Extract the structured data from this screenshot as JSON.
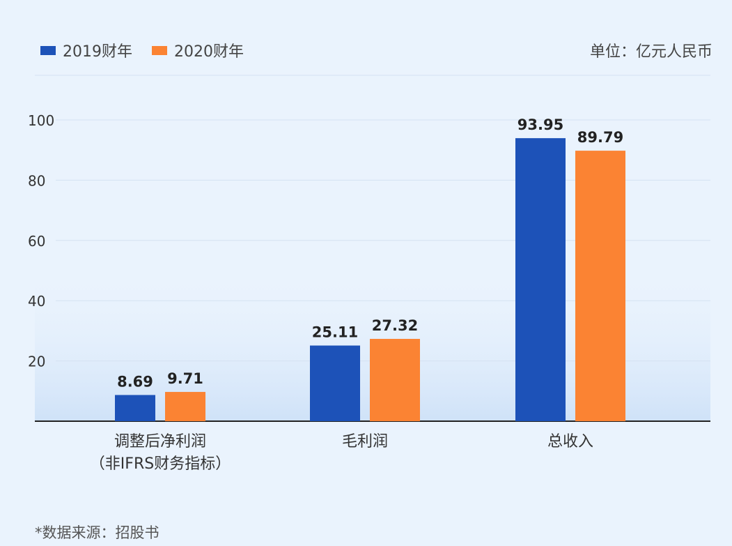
{
  "unit_label": "单位：亿元人民币",
  "source_note": "*数据来源：招股书",
  "colors": {
    "series_2019": "#1d52b8",
    "series_2020": "#fb8333",
    "axis": "#222222",
    "grid": "#d4e2f2",
    "background": "#eaf3fd"
  },
  "chart_data": {
    "type": "bar",
    "categories": [
      [
        "调整后净利润",
        "（非IFRS财务指标）"
      ],
      [
        "毛利润"
      ],
      [
        "总收入"
      ]
    ],
    "series": [
      {
        "name": "2019财年",
        "values": [
          8.69,
          25.11,
          93.95
        ]
      },
      {
        "name": "2020财年",
        "values": [
          9.71,
          27.32,
          89.79
        ]
      }
    ],
    "yticks": [
      20,
      40,
      60,
      80,
      100
    ],
    "ylim": [
      0,
      100
    ],
    "grid": true,
    "legend_position": "top-left"
  }
}
